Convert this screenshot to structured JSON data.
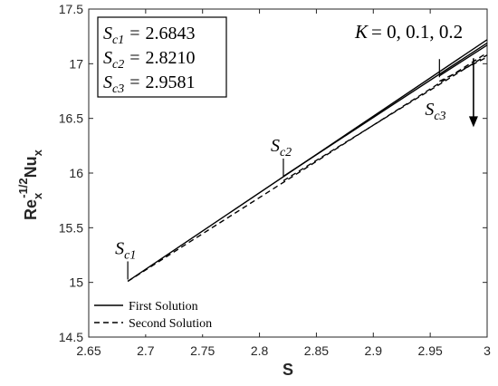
{
  "chart_data": {
    "type": "line",
    "xlabel": "S",
    "ylabel": {
      "base": "Re",
      "sub": "x",
      "sup": "-1/2",
      "base2": "Nu",
      "sub2": "x"
    },
    "xlim": [
      2.65,
      3.0
    ],
    "ylim": [
      14.5,
      17.5
    ],
    "xticks": [
      2.65,
      2.7,
      2.75,
      2.8,
      2.85,
      2.9,
      2.95,
      3.0
    ],
    "xtick_labels": [
      "2.65",
      "2.7",
      "2.75",
      "2.8",
      "2.85",
      "2.9",
      "2.95",
      "3"
    ],
    "yticks": [
      14.5,
      15,
      15.5,
      16,
      16.5,
      17,
      17.5
    ],
    "ytick_labels": [
      "14.5",
      "15",
      "15.5",
      "16",
      "16.5",
      "17",
      "17.5"
    ],
    "grid": false,
    "series": [
      {
        "K": 0,
        "solution": "first",
        "style": "solid",
        "x": [
          2.6843,
          3.0
        ],
        "y": [
          15.01,
          17.22
        ]
      },
      {
        "K": 0,
        "solution": "second",
        "style": "dashed",
        "x": [
          2.6843,
          3.0
        ],
        "y": [
          15.01,
          17.1
        ]
      },
      {
        "K": 0.1,
        "solution": "first",
        "style": "solid",
        "x": [
          2.821,
          3.0
        ],
        "y": [
          15.97,
          17.19
        ]
      },
      {
        "K": 0.1,
        "solution": "second",
        "style": "dashed",
        "x": [
          2.821,
          3.0
        ],
        "y": [
          15.93,
          17.08
        ]
      },
      {
        "K": 0.2,
        "solution": "first",
        "style": "solid",
        "x": [
          2.9581,
          3.0
        ],
        "y": [
          16.89,
          17.17
        ]
      },
      {
        "K": 0.2,
        "solution": "second",
        "style": "dashed",
        "x": [
          2.9581,
          3.0
        ],
        "y": [
          16.84,
          17.06
        ]
      }
    ],
    "critical_points": [
      {
        "name": "S",
        "sub": "c1",
        "value": "2.6843",
        "x": 2.6843,
        "y": 15.01
      },
      {
        "name": "S",
        "sub": "c2",
        "value": "2.8210",
        "x": 2.821,
        "y": 15.95
      },
      {
        "name": "S",
        "sub": "c3",
        "value": "2.9581",
        "x": 2.9581,
        "y": 16.86
      }
    ],
    "annotation_arrow": {
      "text_prefix": "K",
      "text_value": "= 0, 0.1, 0.2",
      "x": 2.988,
      "y_from": 17.05,
      "y_to": 16.42
    },
    "legend": {
      "placement": "bottom-left",
      "entries": [
        {
          "label": "First Solution",
          "style": "solid"
        },
        {
          "label": "Second Solution",
          "style": "dashed"
        }
      ]
    },
    "info_box": {
      "placement": "top-left"
    }
  }
}
